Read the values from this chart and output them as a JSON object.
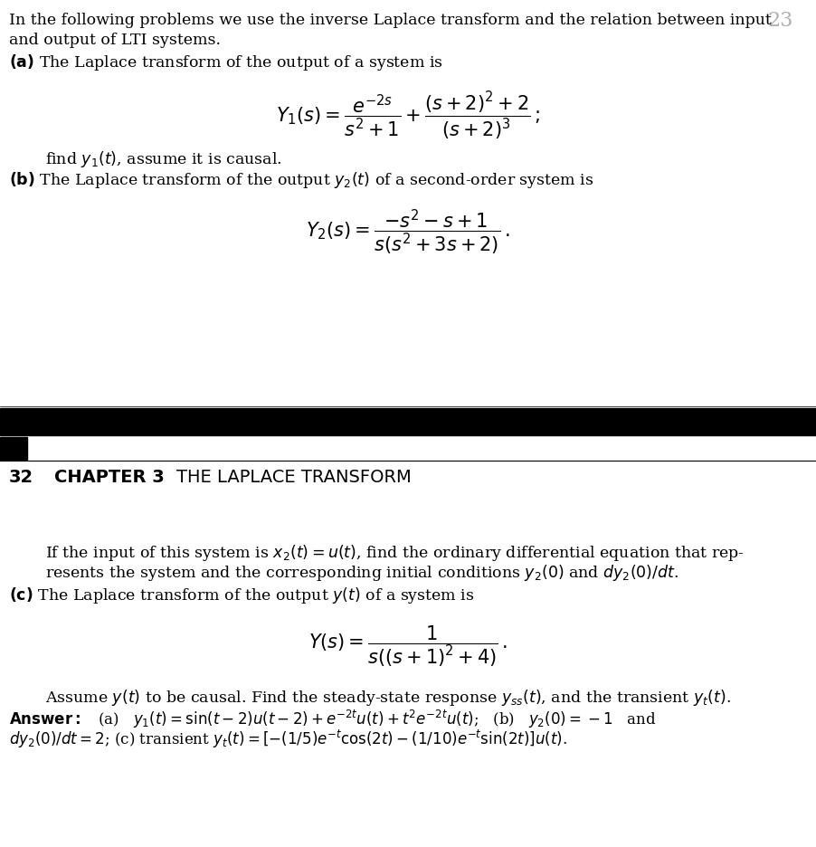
{
  "bg_color": "#ffffff",
  "black_bar_color": "#000000",
  "font_size_body": 12.5,
  "font_size_eq": 14,
  "font_size_chapter": 14,
  "top_page_num": "23",
  "top_intro_line1": "In the following problems we use the inverse Laplace transform and the relation between input",
  "top_intro_line2": "and output of LTI systems.",
  "top_a_text": " The Laplace transform of the output of a system is",
  "top_eq1": "$Y_1(s) = \\dfrac{e^{-2s}}{s^2+1} + \\dfrac{(s+2)^2+2}{(s+2)^3}\\,;$",
  "top_a_follow": "find $y_1(t)$, assume it is causal.",
  "top_b_text": " The Laplace transform of the output $y_2(t)$ of a second-order system is",
  "top_eq2": "$Y_2(s) = \\dfrac{-s^2-s+1}{s(s^2+3s+2)}\\,.$",
  "bot_chapter": "CHAPTER 3",
  "bot_chapter_sub": "THE LAPLACE TRANSFORM",
  "bot_page_num": "32",
  "bot_b_cont1": "If the input of this system is $x_2(t)=u(t)$, find the ordinary differential equation that rep-",
  "bot_b_cont2": "resents the system and the corresponding initial conditions $y_2(0)$ and $dy_2(0)/dt$.",
  "bot_c_text": " The Laplace transform of the output $y(t)$ of a system is",
  "bot_eq3": "$Y(s) = \\dfrac{1}{s((s+1)^2+4)}\\,.$",
  "bot_c_follow": "Assume $y(t)$ to be causal. Find the steady-state response $y_{ss}(t)$, and the transient $y_t(t)$.",
  "bot_ans1": "   (a)   $y_1(t)=\\sin(t-2)u(t-2)+e^{-2t}u(t)+t^2e^{-2t}u(t)$;   (b)   $y_2(0)=-1$   and",
  "bot_ans2": "$dy_2(0)/dt=2$; (c) transient $y_t(t)=[-(1/5)e^{-t}\\cos(2t)-(1/10)e^{-t}\\sin(2t)]u(t)$."
}
